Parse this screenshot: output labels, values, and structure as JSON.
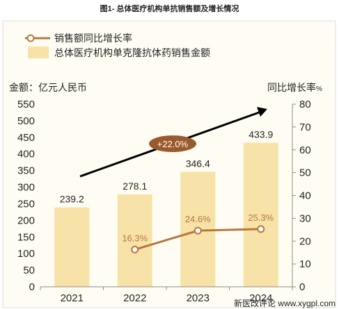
{
  "header": {
    "title": "图1- 总体医疗机构单抗销售额及增长情况"
  },
  "chart_data": {
    "type": "bar",
    "categories": [
      "2021",
      "2022",
      "2023",
      "2024"
    ],
    "series": [
      {
        "name": "总体医疗机构单克隆抗体药销售金额",
        "type": "bar",
        "axis": "left",
        "values": [
          239.2,
          278.1,
          346.4,
          433.9
        ],
        "labels": [
          "239.2",
          "278.1",
          "346.4",
          "433.9"
        ]
      },
      {
        "name": "销售额同比增长率",
        "type": "line",
        "axis": "right",
        "x": [
          "2022",
          "2023",
          "2024"
        ],
        "values": [
          16.3,
          24.6,
          25.3
        ],
        "labels": [
          "16.3%",
          "24.6%",
          "25.3%"
        ]
      }
    ],
    "ylabel": "金额：亿元人民币",
    "y2label": "同比增长率",
    "y2label_unit": "%",
    "ylim": [
      0,
      550
    ],
    "y_ticks": [
      "0",
      "50",
      "100",
      "150",
      "200",
      "250",
      "300",
      "350",
      "400",
      "450",
      "500",
      "550"
    ],
    "y2lim": [
      0,
      80
    ],
    "y2_ticks": [
      "0",
      "10",
      "20",
      "30",
      "40",
      "50",
      "60",
      "70",
      "80"
    ],
    "annotation": "+22.0%",
    "legend_position": "top-left",
    "grid": false
  },
  "colors": {
    "bar": "#f7e2a8",
    "line": "#b7773f",
    "marker_fill": "#ffffff",
    "arrow": "#000000",
    "cagr_badge": "#9a5a2e",
    "panel": "#fffdf3",
    "panel_border": "#dcdcdc"
  },
  "footer": {
    "watermark": "新医改评论 www.xygpl.com"
  }
}
